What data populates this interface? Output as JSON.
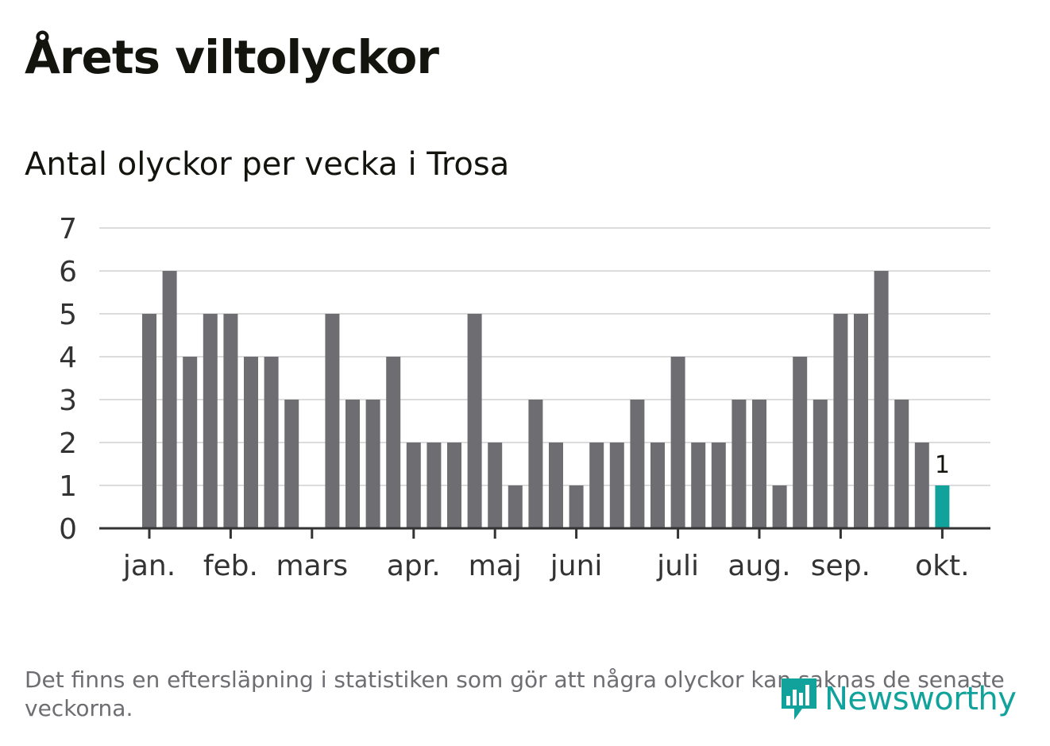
{
  "title": "Årets viltolyckor",
  "subtitle": "Antal olyckor per vecka i Trosa",
  "footnote": "Det finns en eftersläpning i statistiken som gör att några olyckor kan saknas de senaste veckorna.",
  "logo": {
    "text": "Newsworthy",
    "icon": "bar-chart-badge-icon"
  },
  "colors": {
    "bar": "#6d6d72",
    "highlight": "#11a29c",
    "grid": "#dcdcdc",
    "axis": "#333333",
    "text": "#14140f"
  },
  "chart_data": {
    "type": "bar",
    "title": "Antal olyckor per vecka i Trosa",
    "xlabel": "",
    "ylabel": "",
    "ylim": [
      0,
      7
    ],
    "yticks": [
      "0",
      "1",
      "2",
      "3",
      "4",
      "5",
      "6",
      "7"
    ],
    "grid": true,
    "month_labels": [
      {
        "label": "jan.",
        "week": 1
      },
      {
        "label": "feb.",
        "week": 5
      },
      {
        "label": "mars",
        "week": 9
      },
      {
        "label": "apr.",
        "week": 14
      },
      {
        "label": "maj",
        "week": 18
      },
      {
        "label": "juni",
        "week": 22
      },
      {
        "label": "juli",
        "week": 27
      },
      {
        "label": "aug.",
        "week": 31
      },
      {
        "label": "sep.",
        "week": 35
      },
      {
        "label": "okt.",
        "week": 40
      }
    ],
    "weeks": [
      1,
      2,
      3,
      4,
      5,
      6,
      7,
      8,
      9,
      10,
      11,
      12,
      13,
      14,
      15,
      16,
      17,
      18,
      19,
      20,
      21,
      22,
      23,
      24,
      25,
      26,
      27,
      28,
      29,
      30,
      31,
      32,
      33,
      34,
      35,
      36,
      37,
      38,
      39,
      40
    ],
    "values": [
      5,
      6,
      4,
      5,
      5,
      4,
      4,
      3,
      0,
      5,
      3,
      3,
      4,
      2,
      2,
      2,
      5,
      2,
      1,
      3,
      2,
      1,
      2,
      2,
      3,
      2,
      4,
      2,
      2,
      3,
      3,
      1,
      4,
      3,
      5,
      5,
      6,
      3,
      2,
      1
    ],
    "highlight_index": 39,
    "data_labels": [
      {
        "index": 39,
        "text": "1"
      }
    ]
  }
}
